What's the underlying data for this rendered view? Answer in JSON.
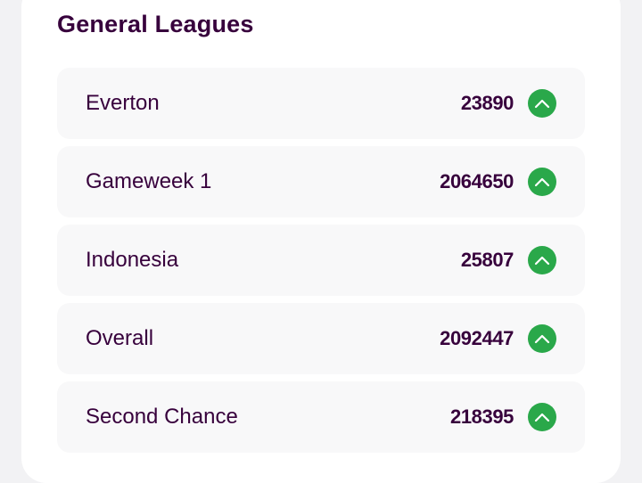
{
  "section": {
    "title": "General Leagues"
  },
  "leagues": [
    {
      "name": "Everton",
      "rank": "23890",
      "movement_icon": "chevron-up-icon",
      "movement_color": "#2aa84a"
    },
    {
      "name": "Gameweek 1",
      "rank": "2064650",
      "movement_icon": "chevron-up-icon",
      "movement_color": "#2aa84a"
    },
    {
      "name": "Indonesia",
      "rank": "25807",
      "movement_icon": "chevron-up-icon",
      "movement_color": "#2aa84a"
    },
    {
      "name": "Overall",
      "rank": "2092447",
      "movement_icon": "chevron-up-icon",
      "movement_color": "#2aa84a"
    },
    {
      "name": "Second Chance",
      "rank": "218395",
      "movement_icon": "chevron-up-icon",
      "movement_color": "#2aa84a"
    }
  ],
  "colors": {
    "text": "#37003c",
    "row_background": "#f8f8f9",
    "card_background": "#ffffff",
    "page_background": "#f2f2f4"
  }
}
